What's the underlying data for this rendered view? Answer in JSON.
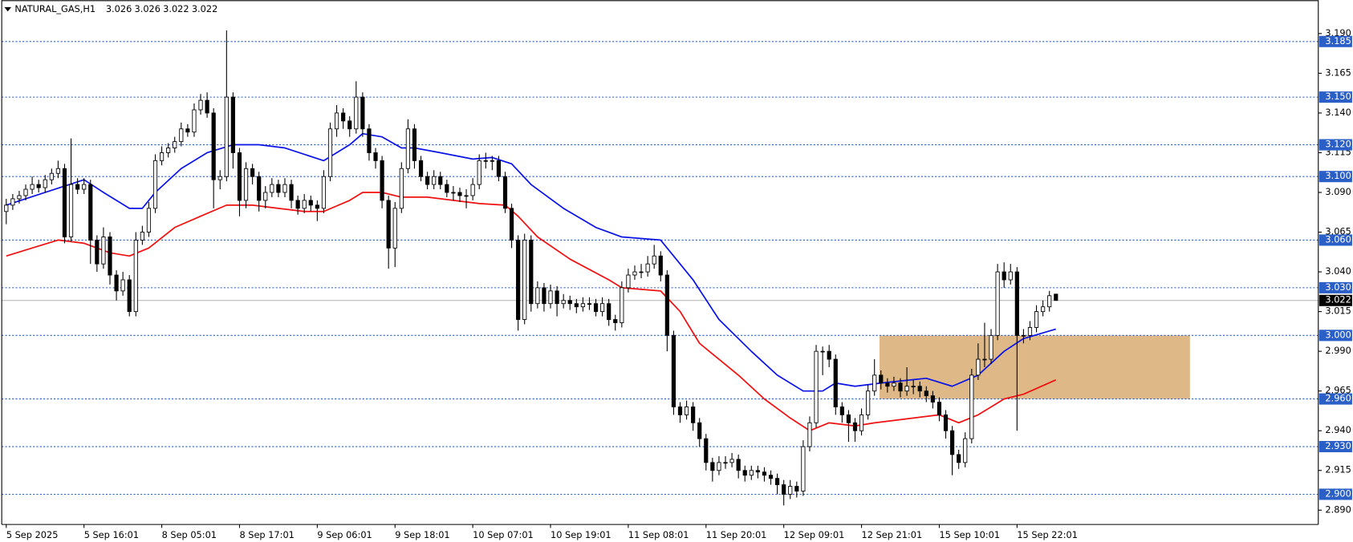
{
  "chart_data": {
    "type": "candlestick",
    "title": "NATURAL_GAS,H1",
    "ylim": [
      2.881,
      3.211
    ],
    "yticks": [
      {
        "value": 3.19,
        "label": "3.190"
      },
      3.165,
      {
        "value": 3.14,
        "label": "3.140"
      },
      3.115,
      {
        "value": 3.09,
        "label": "3.090"
      },
      3.065,
      {
        "value": 3.04,
        "label": "3.040"
      },
      3.015,
      {
        "value": 2.99,
        "label": "2.990"
      },
      2.965,
      {
        "value": 2.94,
        "label": "2.940"
      },
      2.915,
      {
        "value": 2.89,
        "label": "2.890"
      }
    ],
    "xlim": [
      -0.7,
      202.5
    ],
    "xticks": [
      {
        "value": 0,
        "label": "5 Sep 2025"
      },
      {
        "value": 12,
        "label": "5 Sep 16:01"
      },
      {
        "value": 24,
        "label": "8 Sep 05:01"
      },
      {
        "value": 36,
        "label": "8 Sep 17:01"
      },
      {
        "value": 48,
        "label": "9 Sep 06:01"
      },
      {
        "value": 60,
        "label": "9 Sep 18:01"
      },
      {
        "value": 72,
        "label": "10 Sep 07:01"
      },
      {
        "value": 84,
        "label": "10 Sep 19:01"
      },
      {
        "value": 96,
        "label": "11 Sep 08:01"
      },
      {
        "value": 108,
        "label": "11 Sep 20:01"
      },
      {
        "value": 120,
        "label": "12 Sep 09:01"
      },
      {
        "value": 132,
        "label": "12 Sep 21:01"
      },
      {
        "value": 144,
        "label": "15 Sep 10:01"
      },
      {
        "value": 156,
        "label": "15 Sep 22:01"
      }
    ],
    "levels": [
      3.185,
      {
        "value": 3.15,
        "label": "3.150"
      },
      {
        "value": 3.12,
        "label": "3.120"
      },
      {
        "value": 3.1,
        "label": "3.100"
      },
      {
        "value": 3.06,
        "label": "3.060"
      },
      {
        "value": 3.03,
        "label": "3.030"
      },
      {
        "value": 3.0,
        "label": "3.000"
      },
      {
        "value": 2.96,
        "label": "2.960"
      },
      {
        "value": 2.93,
        "label": "2.930"
      },
      {
        "value": 2.9,
        "label": "2.900"
      }
    ],
    "level_color": "#2a5fc8",
    "zone": {
      "low": 2.96,
      "high": 3.0,
      "color": "#deb887"
    },
    "ohlc": [
      [
        3.078,
        3.086,
        3.07,
        3.082
      ],
      [
        3.082,
        3.089,
        3.079,
        3.086
      ],
      [
        3.086,
        3.091,
        3.083,
        3.088
      ],
      [
        3.088,
        3.095,
        3.085,
        3.092
      ],
      [
        3.092,
        3.1,
        3.089,
        3.095
      ],
      [
        3.095,
        3.098,
        3.09,
        3.093
      ],
      [
        3.093,
        3.101,
        3.09,
        3.098
      ],
      [
        3.098,
        3.105,
        3.095,
        3.102
      ],
      [
        3.102,
        3.11,
        3.099,
        3.105
      ],
      [
        3.105,
        3.108,
        3.058,
        3.062
      ],
      [
        3.062,
        3.124,
        3.059,
        3.095
      ],
      [
        3.095,
        3.099,
        3.089,
        3.092
      ],
      [
        3.092,
        3.099,
        3.089,
        3.095
      ],
      [
        3.095,
        3.098,
        3.045,
        3.06
      ],
      [
        3.06,
        3.063,
        3.04,
        3.045
      ],
      [
        3.045,
        3.068,
        3.042,
        3.062
      ],
      [
        3.062,
        3.065,
        3.032,
        3.038
      ],
      [
        3.038,
        3.041,
        3.022,
        3.028
      ],
      [
        3.028,
        3.04,
        3.025,
        3.035
      ],
      [
        3.035,
        3.038,
        3.012,
        3.015
      ],
      [
        3.015,
        3.065,
        3.012,
        3.06
      ],
      [
        3.06,
        3.069,
        3.057,
        3.065
      ],
      [
        3.065,
        3.084,
        3.062,
        3.08
      ],
      [
        3.08,
        3.114,
        3.077,
        3.11
      ],
      [
        3.11,
        3.119,
        3.107,
        3.115
      ],
      [
        3.115,
        3.121,
        3.112,
        3.118
      ],
      [
        3.118,
        3.125,
        3.115,
        3.122
      ],
      [
        3.122,
        3.134,
        3.119,
        3.13
      ],
      [
        3.13,
        3.133,
        3.125,
        3.128
      ],
      [
        3.128,
        3.146,
        3.125,
        3.142
      ],
      [
        3.142,
        3.152,
        3.139,
        3.148
      ],
      [
        3.148,
        3.153,
        3.137,
        3.14
      ],
      [
        3.14,
        3.143,
        3.08,
        3.098
      ],
      [
        3.098,
        3.104,
        3.092,
        3.1
      ],
      [
        3.1,
        3.192,
        3.097,
        3.15
      ],
      [
        3.15,
        3.153,
        3.105,
        3.115
      ],
      [
        3.115,
        3.118,
        3.075,
        3.085
      ],
      [
        3.085,
        3.109,
        3.08,
        3.105
      ],
      [
        3.105,
        3.108,
        3.095,
        3.1
      ],
      [
        3.1,
        3.103,
        3.078,
        3.085
      ],
      [
        3.085,
        3.094,
        3.08,
        3.09
      ],
      [
        3.09,
        3.099,
        3.087,
        3.095
      ],
      [
        3.095,
        3.098,
        3.087,
        3.09
      ],
      [
        3.09,
        3.099,
        3.087,
        3.095
      ],
      [
        3.095,
        3.098,
        3.08,
        3.085
      ],
      [
        3.085,
        3.088,
        3.076,
        3.08
      ],
      [
        3.08,
        3.089,
        3.077,
        3.085
      ],
      [
        3.085,
        3.088,
        3.078,
        3.082
      ],
      [
        3.082,
        3.085,
        3.072,
        3.08
      ],
      [
        3.08,
        3.104,
        3.077,
        3.1
      ],
      [
        3.1,
        3.134,
        3.097,
        3.13
      ],
      [
        3.13,
        3.145,
        3.125,
        3.14
      ],
      [
        3.14,
        3.143,
        3.13,
        3.135
      ],
      [
        3.135,
        3.138,
        3.125,
        3.13
      ],
      [
        3.13,
        3.16,
        3.127,
        3.15
      ],
      [
        3.15,
        3.153,
        3.125,
        3.13
      ],
      [
        3.13,
        3.133,
        3.11,
        3.115
      ],
      [
        3.115,
        3.118,
        3.105,
        3.11
      ],
      [
        3.11,
        3.113,
        3.08,
        3.085
      ],
      [
        3.085,
        3.088,
        3.042,
        3.055
      ],
      [
        3.055,
        3.084,
        3.043,
        3.08
      ],
      [
        3.08,
        3.109,
        3.077,
        3.105
      ],
      [
        3.105,
        3.136,
        3.102,
        3.13
      ],
      [
        3.13,
        3.133,
        3.105,
        3.11
      ],
      [
        3.11,
        3.113,
        3.097,
        3.1
      ],
      [
        3.1,
        3.103,
        3.092,
        3.095
      ],
      [
        3.095,
        3.104,
        3.092,
        3.1
      ],
      [
        3.1,
        3.103,
        3.092,
        3.095
      ],
      [
        3.095,
        3.098,
        3.087,
        3.09
      ],
      [
        3.09,
        3.094,
        3.085,
        3.09
      ],
      [
        3.09,
        3.093,
        3.084,
        3.088
      ],
      [
        3.088,
        3.092,
        3.08,
        3.088
      ],
      [
        3.088,
        3.099,
        3.085,
        3.095
      ],
      [
        3.095,
        3.114,
        3.092,
        3.11
      ],
      [
        3.11,
        3.115,
        3.105,
        3.11
      ],
      [
        3.11,
        3.113,
        3.104,
        3.11
      ],
      [
        3.11,
        3.113,
        3.097,
        3.1
      ],
      [
        3.1,
        3.103,
        3.077,
        3.08
      ],
      [
        3.08,
        3.083,
        3.055,
        3.06
      ],
      [
        3.06,
        3.063,
        3.003,
        3.01
      ],
      [
        3.01,
        3.064,
        3.007,
        3.06
      ],
      [
        3.06,
        3.063,
        3.015,
        3.02
      ],
      [
        3.02,
        3.034,
        3.017,
        3.03
      ],
      [
        3.03,
        3.033,
        3.015,
        3.02
      ],
      [
        3.02,
        3.032,
        3.017,
        3.028
      ],
      [
        3.028,
        3.031,
        3.012,
        3.02
      ],
      [
        3.02,
        3.026,
        3.017,
        3.022
      ],
      [
        3.022,
        3.025,
        3.016,
        3.02
      ],
      [
        3.02,
        3.023,
        3.014,
        3.018
      ],
      [
        3.018,
        3.024,
        3.015,
        3.02
      ],
      [
        3.02,
        3.024,
        3.016,
        3.02
      ],
      [
        3.02,
        3.023,
        3.012,
        3.015
      ],
      [
        3.015,
        3.024,
        3.012,
        3.02
      ],
      [
        3.02,
        3.023,
        3.006,
        3.01
      ],
      [
        3.01,
        3.013,
        3.003,
        3.008
      ],
      [
        3.008,
        3.034,
        3.005,
        3.03
      ],
      [
        3.03,
        3.042,
        3.027,
        3.038
      ],
      [
        3.038,
        3.044,
        3.035,
        3.04
      ],
      [
        3.04,
        3.045,
        3.036,
        3.04
      ],
      [
        3.04,
        3.05,
        3.037,
        3.045
      ],
      [
        3.045,
        3.057,
        3.042,
        3.05
      ],
      [
        3.05,
        3.053,
        3.034,
        3.038
      ],
      [
        3.038,
        3.041,
        2.99,
        3.0
      ],
      [
        3.0,
        3.003,
        2.95,
        2.955
      ],
      [
        2.955,
        2.958,
        2.945,
        2.95
      ],
      [
        2.95,
        2.959,
        2.947,
        2.955
      ],
      [
        2.955,
        2.958,
        2.94,
        2.945
      ],
      [
        2.945,
        2.948,
        2.93,
        2.935
      ],
      [
        2.935,
        2.938,
        2.915,
        2.92
      ],
      [
        2.92,
        2.923,
        2.908,
        2.915
      ],
      [
        2.915,
        2.924,
        2.912,
        2.92
      ],
      [
        2.92,
        2.924,
        2.916,
        2.92
      ],
      [
        2.92,
        2.926,
        2.917,
        2.922
      ],
      [
        2.922,
        2.925,
        2.91,
        2.915
      ],
      [
        2.915,
        2.918,
        2.908,
        2.912
      ],
      [
        2.912,
        2.918,
        2.909,
        2.915
      ],
      [
        2.915,
        2.918,
        2.91,
        2.914
      ],
      [
        2.914,
        2.917,
        2.908,
        2.912
      ],
      [
        2.912,
        2.915,
        2.906,
        2.91
      ],
      [
        2.91,
        2.913,
        2.9,
        2.906
      ],
      [
        2.906,
        2.909,
        2.893,
        2.9
      ],
      [
        2.9,
        2.909,
        2.897,
        2.905
      ],
      [
        2.905,
        2.908,
        2.898,
        2.902
      ],
      [
        2.902,
        2.934,
        2.899,
        2.93
      ],
      [
        2.93,
        2.949,
        2.927,
        2.945
      ],
      [
        2.945,
        2.994,
        2.942,
        2.99
      ],
      [
        2.99,
        2.993,
        2.975,
        2.99
      ],
      [
        2.99,
        2.994,
        2.98,
        2.985
      ],
      [
        2.985,
        2.988,
        2.95,
        2.955
      ],
      [
        2.955,
        2.958,
        2.945,
        2.95
      ],
      [
        2.95,
        2.953,
        2.933,
        2.945
      ],
      [
        2.945,
        2.948,
        2.933,
        2.94
      ],
      [
        2.94,
        2.954,
        2.937,
        2.95
      ],
      [
        2.95,
        2.969,
        2.947,
        2.965
      ],
      [
        2.965,
        2.985,
        2.962,
        2.975
      ],
      [
        2.975,
        2.978,
        2.966,
        2.97
      ],
      [
        2.97,
        2.973,
        2.964,
        2.968
      ],
      [
        2.968,
        2.974,
        2.965,
        2.97
      ],
      [
        2.97,
        2.973,
        2.961,
        2.965
      ],
      [
        2.965,
        2.98,
        2.962,
        2.968
      ],
      [
        2.968,
        2.972,
        2.963,
        2.968
      ],
      [
        2.968,
        2.971,
        2.961,
        2.965
      ],
      [
        2.965,
        2.968,
        2.958,
        2.962
      ],
      [
        2.962,
        2.965,
        2.954,
        2.958
      ],
      [
        2.958,
        2.961,
        2.946,
        2.95
      ],
      [
        2.95,
        2.953,
        2.935,
        2.94
      ],
      [
        2.94,
        2.943,
        2.912,
        2.925
      ],
      [
        2.925,
        2.928,
        2.916,
        2.92
      ],
      [
        2.92,
        2.939,
        2.917,
        2.935
      ],
      [
        2.935,
        2.979,
        2.932,
        2.975
      ],
      [
        2.975,
        2.995,
        2.972,
        2.985
      ],
      [
        2.985,
        3.008,
        2.98,
        2.985
      ],
      [
        2.985,
        3.004,
        2.982,
        3.0
      ],
      [
        3.0,
        3.045,
        2.997,
        3.04
      ],
      [
        3.04,
        3.046,
        3.03,
        3.035
      ],
      [
        3.035,
        3.045,
        3.032,
        3.04
      ],
      [
        3.04,
        3.043,
        2.94,
        3.0
      ],
      [
        3.0,
        3.004,
        2.995,
        3.0
      ],
      [
        3.0,
        3.009,
        2.997,
        3.005
      ],
      [
        3.005,
        3.019,
        3.002,
        3.015
      ],
      [
        3.015,
        3.022,
        3.012,
        3.018
      ],
      [
        3.018,
        3.028,
        3.015,
        3.025
      ],
      [
        3.026,
        3.026,
        3.022,
        3.022
      ]
    ],
    "lines": [
      {
        "color": "#0a14e6",
        "x": [
          0,
          6,
          12,
          15,
          19,
          21,
          23,
          27,
          31,
          35,
          39,
          43,
          49,
          53,
          55,
          58,
          61,
          63,
          67,
          72,
          75,
          78,
          81,
          86,
          91,
          95,
          101,
          103,
          106,
          110,
          115,
          119,
          123,
          126,
          128,
          131,
          135,
          142,
          146,
          150,
          154,
          157,
          162
        ],
        "values": [
          3.082,
          3.09,
          3.098,
          3.09,
          3.08,
          3.08,
          3.09,
          3.105,
          3.115,
          3.12,
          3.12,
          3.118,
          3.11,
          3.12,
          3.127,
          3.125,
          3.118,
          3.118,
          3.115,
          3.111,
          3.112,
          3.108,
          3.095,
          3.08,
          3.068,
          3.062,
          3.06,
          3.05,
          3.035,
          3.01,
          2.99,
          2.975,
          2.965,
          2.965,
          2.97,
          2.968,
          2.97,
          2.973,
          2.968,
          2.975,
          2.99,
          2.998,
          3.004
        ]
      },
      {
        "color": "#f01010",
        "x": [
          0,
          4,
          8,
          12,
          16,
          19,
          22,
          26,
          30,
          34,
          38,
          42,
          46,
          49,
          53,
          55,
          58,
          61,
          65,
          69,
          73,
          77,
          79,
          82,
          87,
          93,
          95,
          101,
          104,
          107,
          113,
          117,
          121,
          124,
          127,
          131,
          134,
          140,
          144,
          147,
          150,
          154,
          157,
          162
        ],
        "values": [
          3.05,
          3.055,
          3.06,
          3.058,
          3.052,
          3.05,
          3.055,
          3.068,
          3.075,
          3.082,
          3.082,
          3.08,
          3.078,
          3.078,
          3.085,
          3.09,
          3.09,
          3.087,
          3.087,
          3.085,
          3.083,
          3.082,
          3.075,
          3.062,
          3.048,
          3.035,
          3.03,
          3.028,
          3.015,
          2.995,
          2.975,
          2.96,
          2.948,
          2.94,
          2.945,
          2.943,
          2.945,
          2.948,
          2.95,
          2.945,
          2.95,
          2.96,
          2.963,
          2.972
        ]
      }
    ]
  }
}
